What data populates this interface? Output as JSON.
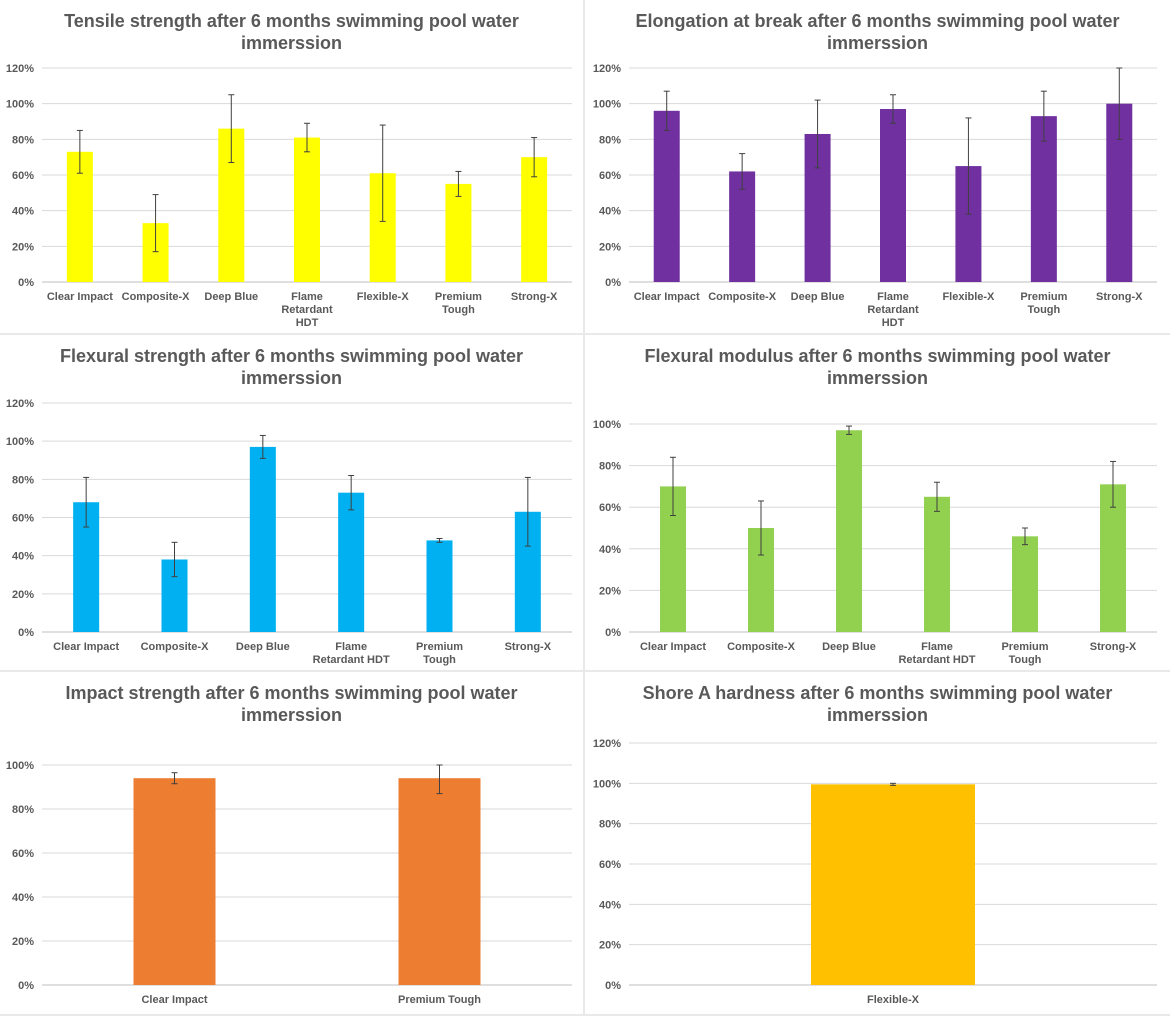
{
  "chart_data": [
    {
      "type": "bar",
      "title": "Tensile strength after 6 months swimming pool water immerssion",
      "categories": [
        "Clear Impact",
        "Composite-X",
        "Deep Blue",
        "Flame Retardant HDT",
        "Flexible-X",
        "Premium Tough",
        "Strong-X"
      ],
      "category_lines": [
        [
          "Clear Impact"
        ],
        [
          "Composite-X"
        ],
        [
          "Deep Blue"
        ],
        [
          "Flame",
          "Retardant",
          "HDT"
        ],
        [
          "Flexible-X"
        ],
        [
          "Premium",
          "Tough"
        ],
        [
          "Strong-X"
        ]
      ],
      "values": [
        73,
        33,
        86,
        81,
        61,
        55,
        70
      ],
      "errors": [
        12,
        16,
        19,
        8,
        27,
        7,
        11
      ],
      "ylim": [
        0,
        120
      ],
      "yticks": [
        "0%",
        "20%",
        "40%",
        "60%",
        "80%",
        "100%",
        "120%"
      ],
      "color": "#ffff00"
    },
    {
      "type": "bar",
      "title": "Elongation at break after 6 months swimming pool water immerssion",
      "categories": [
        "Clear Impact",
        "Composite-X",
        "Deep Blue",
        "Flame Retardant HDT",
        "Flexible-X",
        "Premium Tough",
        "Strong-X"
      ],
      "category_lines": [
        [
          "Clear Impact"
        ],
        [
          "Composite-X"
        ],
        [
          "Deep Blue"
        ],
        [
          "Flame",
          "Retardant",
          "HDT"
        ],
        [
          "Flexible-X"
        ],
        [
          "Premium",
          "Tough"
        ],
        [
          "Strong-X"
        ]
      ],
      "values": [
        96,
        62,
        83,
        97,
        65,
        93,
        100
      ],
      "errors": [
        11,
        10,
        19,
        8,
        27,
        14,
        20
      ],
      "ylim": [
        0,
        120
      ],
      "yticks": [
        "0%",
        "20%",
        "40%",
        "60%",
        "80%",
        "100%",
        "120%"
      ],
      "color": "#7030a0"
    },
    {
      "type": "bar",
      "title": "Flexural strength after 6 months swimming pool water immerssion",
      "categories": [
        "Clear Impact",
        "Composite-X",
        "Deep Blue",
        "Flame Retardant HDT",
        "Premium Tough",
        "Strong-X"
      ],
      "category_lines": [
        [
          "Clear Impact"
        ],
        [
          "Composite-X"
        ],
        [
          "Deep Blue"
        ],
        [
          "Flame",
          "Retardant HDT"
        ],
        [
          "Premium",
          "Tough"
        ],
        [
          "Strong-X"
        ]
      ],
      "values": [
        68,
        38,
        97,
        73,
        48,
        63
      ],
      "errors": [
        13,
        9,
        6,
        9,
        1,
        18
      ],
      "ylim": [
        0,
        120
      ],
      "yticks": [
        "0%",
        "20%",
        "40%",
        "60%",
        "80%",
        "100%",
        "120%"
      ],
      "color": "#00b0f0"
    },
    {
      "type": "bar",
      "title": "Flexural modulus after 6 months swimming pool water immerssion",
      "categories": [
        "Clear Impact",
        "Composite-X",
        "Deep Blue",
        "Flame Retardant HDT",
        "Premium Tough",
        "Strong-X"
      ],
      "category_lines": [
        [
          "Clear Impact"
        ],
        [
          "Composite-X"
        ],
        [
          "Deep Blue"
        ],
        [
          "Flame",
          "Retardant HDT"
        ],
        [
          "Premium",
          "Tough"
        ],
        [
          "Strong-X"
        ]
      ],
      "values": [
        70,
        50,
        97,
        65,
        46,
        71
      ],
      "errors": [
        14,
        13,
        2,
        7,
        4,
        11
      ],
      "ylim": [
        0,
        100
      ],
      "yticks": [
        "0%",
        "20%",
        "40%",
        "60%",
        "80%",
        "100%"
      ],
      "color": "#92d050"
    },
    {
      "type": "bar",
      "title": "Impact strength after 6 months swimming pool water immerssion",
      "categories": [
        "Clear Impact",
        "Premium Tough"
      ],
      "category_lines": [
        [
          "Clear Impact"
        ],
        [
          "Premium Tough"
        ]
      ],
      "values": [
        94,
        94
      ],
      "errors": [
        2.5,
        7
      ],
      "ylim": [
        0,
        100
      ],
      "yticks": [
        "0%",
        "20%",
        "40%",
        "60%",
        "80%",
        "100%"
      ],
      "color": "#ed7d31"
    },
    {
      "type": "bar",
      "title": "Shore A hardness after 6 months swimming pool water immerssion",
      "categories": [
        "Flexible-X"
      ],
      "category_lines": [
        [
          "Flexible-X"
        ]
      ],
      "values": [
        99.5
      ],
      "errors": [
        0.5
      ],
      "ylim": [
        0,
        120
      ],
      "yticks": [
        "0%",
        "20%",
        "40%",
        "60%",
        "80%",
        "100%",
        "120%"
      ],
      "color": "#ffc000"
    }
  ]
}
